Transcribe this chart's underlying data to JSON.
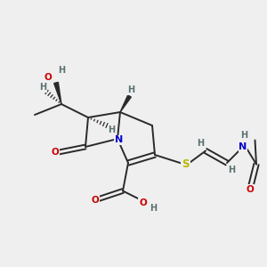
{
  "bg_color": "#efefef",
  "atom_colors": {
    "C": "#3a3a3a",
    "N": "#0000cc",
    "O": "#cc0000",
    "S": "#b8b800",
    "H": "#5a7070"
  },
  "bond_color": "#2a2a2a",
  "bond_lw": 1.4
}
